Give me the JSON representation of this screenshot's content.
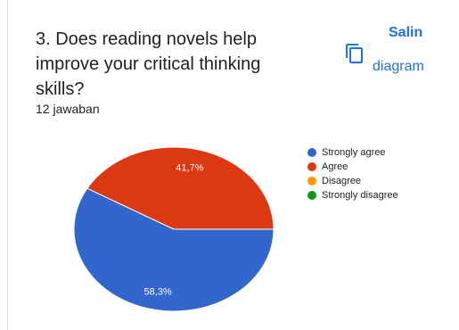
{
  "question": {
    "title": "3. Does reading novels help improve your critical thinking skills?",
    "response_count": "12 jawaban"
  },
  "copy_button": {
    "label_line1": "Salin",
    "label_line2": "diagram",
    "icon": "copy-icon"
  },
  "colors": {
    "accent": "#1a73e8"
  },
  "chart_data": {
    "type": "pie",
    "title": "",
    "legend_position": "right",
    "slices": [
      {
        "label": "Strongly agree",
        "value": 58.3,
        "display": "58,3%",
        "color": "#3366cc"
      },
      {
        "label": "Agree",
        "value": 41.7,
        "display": "41,7%",
        "color": "#dc3912"
      },
      {
        "label": "Disagree",
        "value": 0,
        "display": "",
        "color": "#ff9900"
      },
      {
        "label": "Strongly disagree",
        "value": 0,
        "display": "",
        "color": "#109618"
      }
    ]
  }
}
